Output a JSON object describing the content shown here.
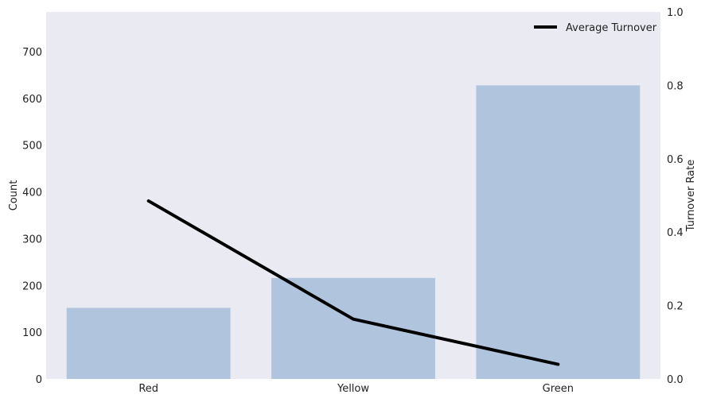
{
  "chart_data": {
    "type": "bar",
    "categories": [
      "Red",
      "Yellow",
      "Green"
    ],
    "series": [
      {
        "type": "bar",
        "axis": "left",
        "values": [
          152,
          216,
          628
        ],
        "color": "#b0c4de"
      },
      {
        "type": "line",
        "axis": "right",
        "name": "Average Turnover",
        "values": [
          0.485,
          0.163,
          0.04
        ],
        "color": "#000000"
      }
    ],
    "ylabel": "Count",
    "y2label": "Turnover Rate",
    "ylim": [
      0,
      785
    ],
    "y2lim": [
      0,
      1.0
    ],
    "yticks": [
      "0",
      "100",
      "200",
      "300",
      "400",
      "500",
      "600",
      "700"
    ],
    "y2ticks": [
      "0.0",
      "0.2",
      "0.4",
      "0.6",
      "0.8",
      "1.0"
    ],
    "legend_position": "top-right",
    "grid": false,
    "background_color": "#eaeaf2"
  }
}
